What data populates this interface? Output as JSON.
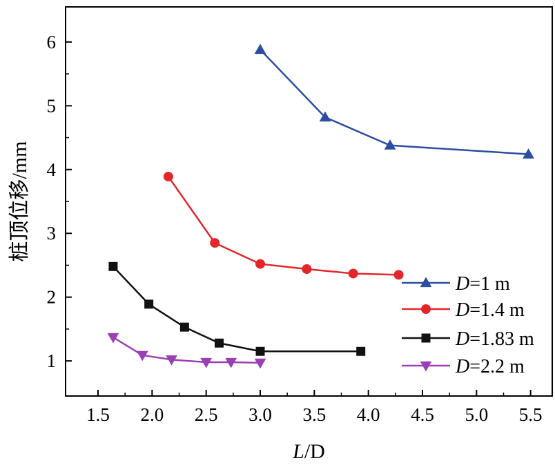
{
  "chart_data": {
    "type": "line",
    "xlabel": {
      "italic": "L",
      "rest": "/D"
    },
    "ylabel": "桩顶位移/mm",
    "xlim": [
      1.2,
      5.7
    ],
    "ylim": [
      0.45,
      6.55
    ],
    "xticks": [
      1.5,
      2.0,
      2.5,
      3.0,
      3.5,
      4.0,
      4.5,
      5.0,
      5.5
    ],
    "xtick_labels": [
      "1.5",
      "2.0",
      "2.5",
      "3.0",
      "3.5",
      "4.0",
      "4.5",
      "5.0",
      "5.5"
    ],
    "yticks": [
      1,
      2,
      3,
      4,
      5,
      6
    ],
    "ytick_labels": [
      "1",
      "2",
      "3",
      "4",
      "5",
      "6"
    ],
    "grid": false,
    "legend_position": "lower-right",
    "series": [
      {
        "name": {
          "italic": "D",
          "rest": "=1 m"
        },
        "color": "#2b4ea2",
        "marker": "triangle-up",
        "x": [
          3.0,
          3.6,
          4.2,
          5.48
        ],
        "y": [
          5.88,
          4.82,
          4.38,
          4.24
        ]
      },
      {
        "name": {
          "italic": "D",
          "rest": "=1.4 m"
        },
        "color": "#e3262a",
        "marker": "circle",
        "x": [
          2.15,
          2.58,
          3.0,
          3.43,
          3.86,
          4.28
        ],
        "y": [
          3.89,
          2.85,
          2.52,
          2.44,
          2.37,
          2.35
        ]
      },
      {
        "name": {
          "italic": "D",
          "rest": "=1.83 m"
        },
        "color": "#111111",
        "marker": "square",
        "x": [
          1.64,
          1.97,
          2.3,
          2.62,
          3.0,
          3.93
        ],
        "y": [
          2.48,
          1.89,
          1.53,
          1.28,
          1.15,
          1.15
        ]
      },
      {
        "name": {
          "italic": "D",
          "rest": "=2.2 m"
        },
        "color": "#9a3fb5",
        "marker": "triangle-down",
        "x": [
          1.64,
          1.91,
          2.18,
          2.5,
          2.73,
          3.0
        ],
        "y": [
          1.37,
          1.09,
          1.02,
          0.98,
          0.98,
          0.97
        ]
      }
    ]
  }
}
